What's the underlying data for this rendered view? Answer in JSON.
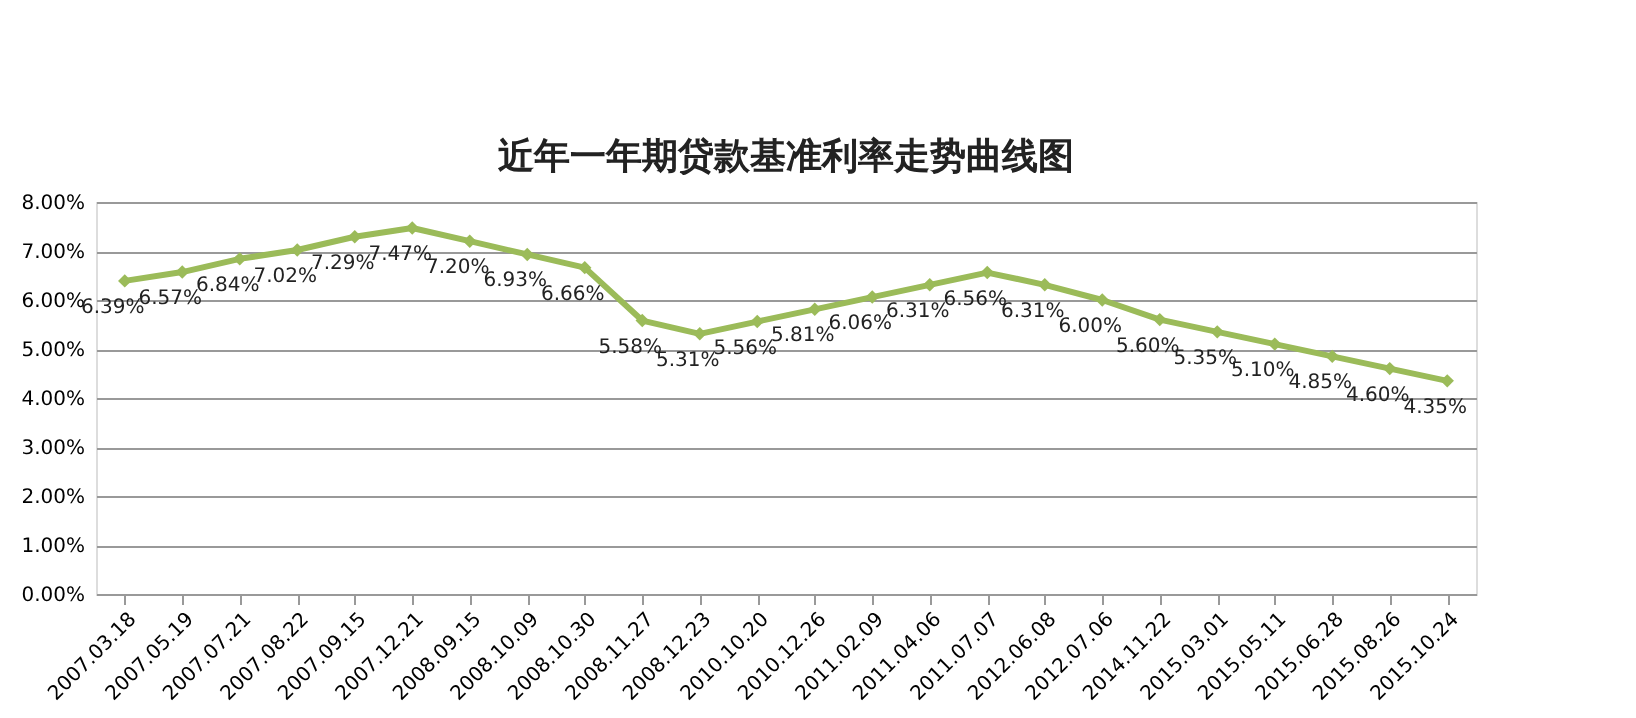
{
  "chart_data": {
    "type": "line",
    "title": "近年一年期贷款基准利率走势曲线图",
    "categories": [
      "2007.03.18",
      "2007.05.19",
      "2007.07.21",
      "2007.08.22",
      "2007.09.15",
      "2007.12.21",
      "2008.09.15",
      "2008.10.09",
      "2008.10.30",
      "2008.11.27",
      "2008.12.23",
      "2010.10.20",
      "2010.12.26",
      "2011.02.09",
      "2011.04.06",
      "2011.07.07",
      "2012.06.08",
      "2012.07.06",
      "2014.11.22",
      "2015.03.01",
      "2015.05.11",
      "2015.06.28",
      "2015.08.26",
      "2015.10.24"
    ],
    "series": [
      {
        "color": "#9bbb59",
        "values": [
          6.39,
          6.57,
          6.84,
          7.02,
          7.29,
          7.47,
          7.2,
          6.93,
          6.66,
          5.58,
          5.31,
          5.56,
          5.81,
          6.06,
          6.31,
          6.56,
          6.31,
          6.0,
          5.6,
          5.35,
          5.1,
          4.85,
          4.6,
          4.35
        ],
        "value_labels": [
          "6.39%",
          "6.57%",
          "6.84%",
          "7.02%",
          "7.29%",
          "7.47%",
          "7.20%",
          "6.93%",
          "6.66%",
          "5.58%",
          "5.31%",
          "5.56%",
          "5.81%",
          "6.06%",
          "6.31%",
          "6.56%",
          "6.31%",
          "6.00%",
          "5.60%",
          "5.35%",
          "5.10%",
          "4.85%",
          "4.60%",
          "4.35%"
        ]
      }
    ],
    "ylim": [
      0,
      8
    ],
    "yticks": [
      {
        "value": 0,
        "label": "0.00%"
      },
      {
        "value": 1,
        "label": "1.00%"
      },
      {
        "value": 2,
        "label": "2.00%"
      },
      {
        "value": 3,
        "label": "3.00%"
      },
      {
        "value": 4,
        "label": "4.00%"
      },
      {
        "value": 5,
        "label": "5.00%"
      },
      {
        "value": 6,
        "label": "6.00%"
      },
      {
        "value": 7,
        "label": "7.00%"
      },
      {
        "value": 8,
        "label": "8.00%"
      }
    ],
    "grid": "y",
    "legend": false,
    "marker": "diamond",
    "line_style": "solid"
  }
}
